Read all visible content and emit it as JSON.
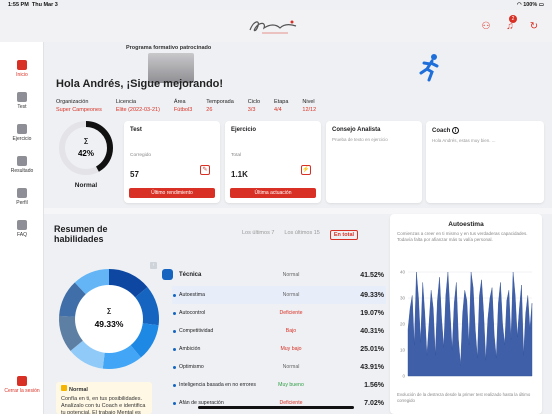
{
  "status": {
    "time": "1:55 PM",
    "date": "Thu Mar 3",
    "battery": "100%"
  },
  "topbar": {
    "notification_count": "2",
    "brand": "Sportia"
  },
  "sidebar": {
    "items": [
      {
        "label": "Inicio",
        "icon": "home-icon",
        "active": true
      },
      {
        "label": "Test",
        "icon": "test-icon",
        "active": false
      },
      {
        "label": "Ejercicio",
        "icon": "exercise-icon",
        "active": false
      },
      {
        "label": "Resultado",
        "icon": "results-icon",
        "active": false
      },
      {
        "label": "Perfil",
        "icon": "profile-icon",
        "active": false
      },
      {
        "label": "FAQ",
        "icon": "faq-icon",
        "active": false
      }
    ],
    "logout": "Cerrar la sesión"
  },
  "hero": {
    "sponsor_label": "Programa formativo patrocinado",
    "greeting": "Hola Andrés, ¡Sigue mejorando!"
  },
  "meta": [
    {
      "key": "Organización",
      "value": "Super Campeones"
    },
    {
      "key": "Licencia",
      "value": "Elite (2022-03-21)"
    },
    {
      "key": "Área",
      "value": "Fútbol3"
    },
    {
      "key": "Temporada",
      "value": "26"
    },
    {
      "key": "Ciclo",
      "value": "3/3"
    },
    {
      "key": "Etapa",
      "value": "4/4"
    },
    {
      "key": "Nivel",
      "value": "12/12"
    }
  ],
  "score": {
    "symbol": "Σ",
    "percent": "42%",
    "label": "Normal",
    "value": 0.42
  },
  "test_card": {
    "title": "Test",
    "sub": "Corregido",
    "value": "57",
    "button": "Último rendimiento"
  },
  "exercise_card": {
    "title": "Ejercicio",
    "sub": "Total",
    "value": "1.1K",
    "button": "Última actuación"
  },
  "analyst_card": {
    "title": "Consejo Analista",
    "placeholder": "Prueba de texto en ejercicio"
  },
  "coach_card": {
    "title": "Coach",
    "placeholder": "Hola Andrés, estas muy bien. ..."
  },
  "skills": {
    "title": "Resumen de habilidades",
    "filters": [
      "Los últimos 7",
      "Los últimos 15",
      "En total"
    ],
    "donut": {
      "symbol": "Σ",
      "percent": "49.33%",
      "value": 0.4933
    },
    "rows": [
      {
        "name": "Técnica",
        "level": "Normal",
        "value": "41.52%",
        "type": "normal",
        "top": true,
        "highlight": false
      },
      {
        "name": "Autoestima",
        "level": "Normal",
        "value": "49.33%",
        "type": "normal",
        "top": false,
        "highlight": true
      },
      {
        "name": "Autocontrol",
        "level": "Deficiente",
        "value": "19.07%",
        "type": "red",
        "top": false,
        "highlight": false
      },
      {
        "name": "Competitividad",
        "level": "Bajo",
        "value": "40.31%",
        "type": "red",
        "top": false,
        "highlight": false
      },
      {
        "name": "Ambición",
        "level": "Muy bajo",
        "value": "25.01%",
        "type": "red",
        "top": false,
        "highlight": false
      },
      {
        "name": "Optimismo",
        "level": "Normal",
        "value": "43.91%",
        "type": "normal",
        "top": false,
        "highlight": false
      },
      {
        "name": "Inteligencia basada en no errores",
        "level": "Muy bueno",
        "value": "1.56%",
        "type": "green",
        "top": false,
        "highlight": false
      },
      {
        "name": "Afán de superación",
        "level": "Deficiente",
        "value": "7.02%",
        "type": "red",
        "top": false,
        "highlight": false
      }
    ],
    "note": {
      "head": "Normal",
      "text": "Confía en ti, en tus posibilidades. Analízalo con tu Coach e identifica tu potencial. El trabajo Mental es"
    }
  },
  "chart_data": {
    "type": "area",
    "title": "Autoestima",
    "description": "Comienzas a creer en ti mismo y en tus verdaderas capacidades. Todavía falta por afianzar más tu valía personal.",
    "footer": "Evolución de la destreza desde la primer test realizado hasta la último corregido",
    "ylim": [
      0,
      40
    ],
    "yticks": [
      0,
      10,
      20,
      30,
      40
    ],
    "values": [
      18,
      26,
      31,
      12,
      40,
      30,
      13,
      36,
      24,
      8,
      20,
      33,
      26,
      8,
      29,
      38,
      22,
      11,
      31,
      40,
      25,
      10,
      28,
      36,
      14,
      4,
      24,
      33,
      29,
      12,
      40,
      34,
      18,
      7,
      31,
      37,
      24,
      6,
      22,
      30,
      34,
      16,
      7,
      28,
      36,
      20,
      12,
      29,
      33,
      14,
      40,
      31,
      15,
      26,
      35,
      8,
      24,
      31,
      18,
      28
    ]
  }
}
